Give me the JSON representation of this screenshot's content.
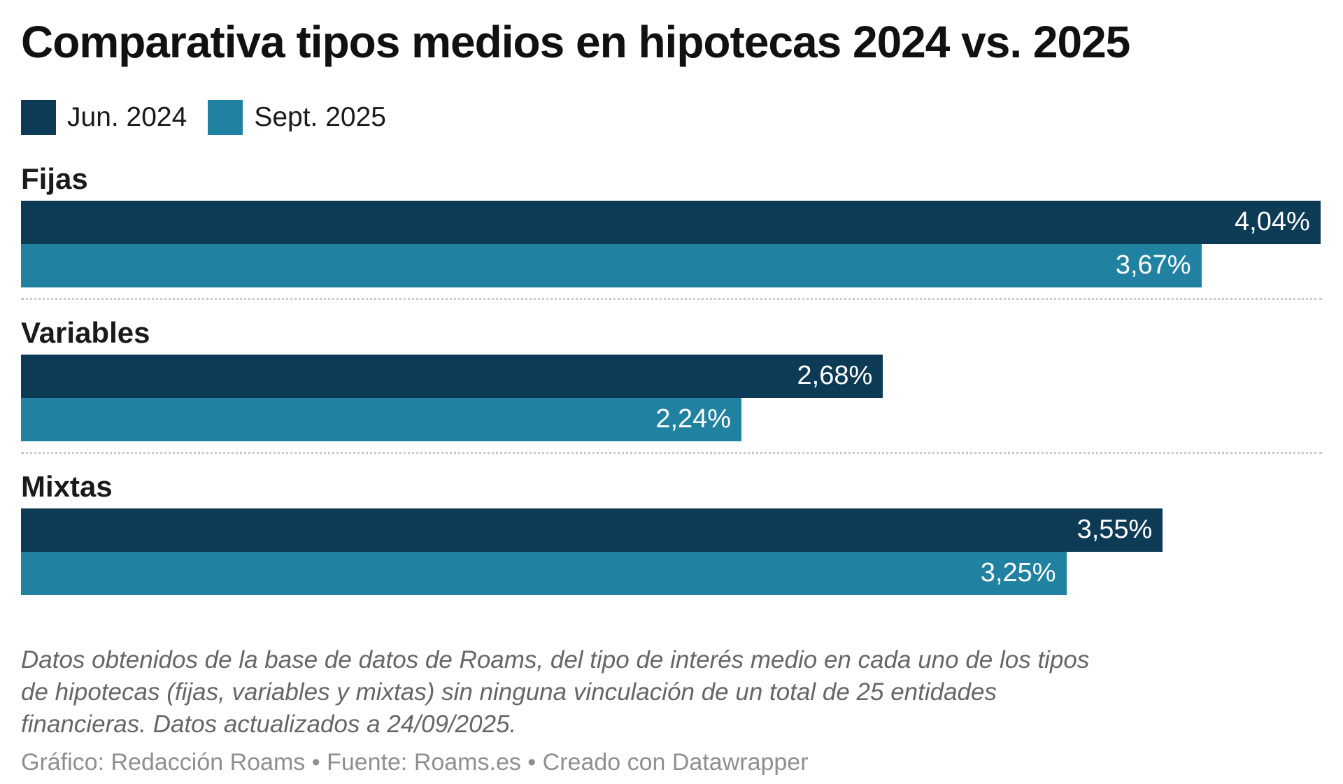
{
  "title": "Comparativa tipos medios en hipotecas 2024 vs. 2025",
  "legend": {
    "items": [
      {
        "label": "Jun. 2024",
        "color": "#0d3a55"
      },
      {
        "label": "Sept. 2025",
        "color": "#2181a0"
      }
    ]
  },
  "chart_data": {
    "type": "bar",
    "orientation": "horizontal",
    "title": "Comparativa tipos medios en hipotecas 2024 vs. 2025",
    "categories": [
      "Fijas",
      "Variables",
      "Mixtas"
    ],
    "series": [
      {
        "name": "Jun. 2024",
        "color": "#0d3a55",
        "values": [
          4.04,
          2.68,
          3.55
        ],
        "labels": [
          "4,04%",
          "2,68%",
          "3,55%"
        ]
      },
      {
        "name": "Sept. 2025",
        "color": "#2181a0",
        "values": [
          3.67,
          2.24,
          3.25
        ],
        "labels": [
          "3,67%",
          "2,24%",
          "3,25%"
        ]
      }
    ],
    "xlim": [
      0,
      4.045
    ],
    "value_suffix": "%",
    "grid": false,
    "legend_position": "top",
    "divider_between_categories": true
  },
  "notes": "Datos obtenidos de la base de datos de Roams, del tipo de interés medio en cada uno de los tipos de hipotecas (fijas, variables y mixtas) sin ninguna vinculación de un total de 25 entidades financieras. Datos actualizados a 24/09/2025.",
  "byline": "Gráfico: Redacción Roams • Fuente: Roams.es • Creado con Datawrapper"
}
